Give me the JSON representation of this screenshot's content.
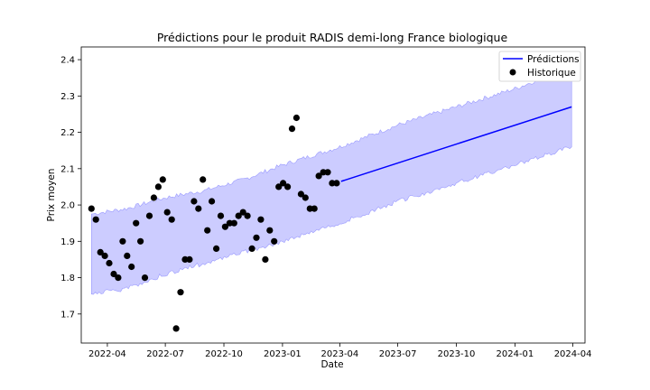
{
  "chart_data": {
    "type": "line",
    "title": "Prédictions pour le produit RADIS demi-long France biologique",
    "xlabel": "Date",
    "ylabel": "Prix moyen",
    "xlim": [
      "2022-02-19",
      "2024-04-20"
    ],
    "ylim": [
      1.62,
      2.435
    ],
    "x_ticks": [
      "2022-04-01",
      "2022-07-01",
      "2022-10-01",
      "2023-01-01",
      "2023-04-01",
      "2023-07-01",
      "2023-10-01",
      "2024-01-01",
      "2024-04-01"
    ],
    "x_tick_labels": [
      "2022-04",
      "2022-07",
      "2022-10",
      "2023-01",
      "2023-04",
      "2023-07",
      "2023-10",
      "2024-01",
      "2024-04"
    ],
    "y_ticks": [
      1.7,
      1.8,
      1.9,
      2.0,
      2.1,
      2.2,
      2.3,
      2.4
    ],
    "y_tick_labels": [
      "1.7",
      "1.8",
      "1.9",
      "2.0",
      "2.1",
      "2.2",
      "2.3",
      "2.4"
    ],
    "grid": false,
    "legend": {
      "placement": "top-right",
      "entries": [
        "Prédictions",
        "Historique"
      ]
    },
    "colors": {
      "prediction_line": "#0000ff",
      "band_fill": "#ccccff",
      "band_edge": "#9a9aff",
      "history_points": "#000000"
    },
    "band": {
      "x": [
        "2022-03-07",
        "2022-05-01",
        "2022-07-01",
        "2022-09-01",
        "2022-11-01",
        "2023-01-01",
        "2023-04-01",
        "2023-07-01",
        "2023-10-01",
        "2024-01-01",
        "2024-03-30"
      ],
      "lower": [
        1.755,
        1.77,
        1.81,
        1.84,
        1.87,
        1.9,
        1.95,
        2.01,
        2.06,
        2.11,
        2.16
      ],
      "upper": [
        1.975,
        1.99,
        2.02,
        2.04,
        2.07,
        2.11,
        2.16,
        2.22,
        2.27,
        2.32,
        2.38
      ]
    },
    "series": [
      {
        "name": "Prédictions",
        "kind": "line",
        "x": [
          "2023-04-03",
          "2024-03-30"
        ],
        "y": [
          2.065,
          2.27
        ]
      },
      {
        "name": "Historique",
        "kind": "scatter",
        "x": [
          "2022-03-07",
          "2022-03-14",
          "2022-03-21",
          "2022-03-28",
          "2022-04-04",
          "2022-04-11",
          "2022-04-18",
          "2022-04-25",
          "2022-05-02",
          "2022-05-09",
          "2022-05-16",
          "2022-05-23",
          "2022-05-30",
          "2022-06-06",
          "2022-06-13",
          "2022-06-20",
          "2022-06-27",
          "2022-07-04",
          "2022-07-11",
          "2022-07-18",
          "2022-07-25",
          "2022-08-01",
          "2022-08-08",
          "2022-08-15",
          "2022-08-22",
          "2022-08-29",
          "2022-09-05",
          "2022-09-12",
          "2022-09-19",
          "2022-09-26",
          "2022-10-03",
          "2022-10-10",
          "2022-10-17",
          "2022-10-24",
          "2022-10-31",
          "2022-11-07",
          "2022-11-14",
          "2022-11-21",
          "2022-11-28",
          "2022-12-05",
          "2022-12-12",
          "2022-12-19",
          "2022-12-26",
          "2023-01-02",
          "2023-01-09",
          "2023-01-16",
          "2023-01-23",
          "2023-01-30",
          "2023-02-06",
          "2023-02-13",
          "2023-02-20",
          "2023-02-27",
          "2023-03-06",
          "2023-03-13",
          "2023-03-20",
          "2023-03-27"
        ],
        "y": [
          1.99,
          1.96,
          1.87,
          1.86,
          1.84,
          1.81,
          1.8,
          1.9,
          1.86,
          1.83,
          1.95,
          1.9,
          1.8,
          1.97,
          2.02,
          2.05,
          2.07,
          1.98,
          1.96,
          1.66,
          1.76,
          1.85,
          1.85,
          2.01,
          1.99,
          2.07,
          1.93,
          2.01,
          1.88,
          1.97,
          1.94,
          1.95,
          1.95,
          1.97,
          1.98,
          1.97,
          1.88,
          1.91,
          1.96,
          1.85,
          1.93,
          1.9,
          2.05,
          2.06,
          2.05,
          2.21,
          2.24,
          2.03,
          2.02,
          1.99,
          1.99,
          2.08,
          2.09,
          2.09,
          2.06,
          2.06
        ]
      }
    ]
  }
}
